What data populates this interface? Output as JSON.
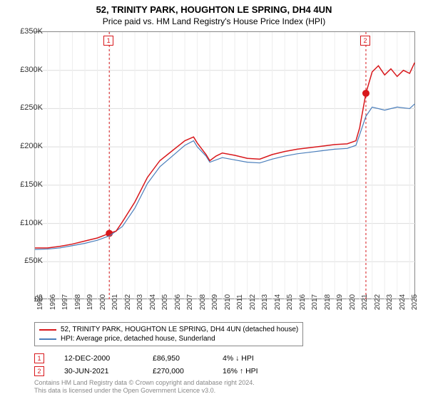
{
  "title": "52, TRINITY PARK, HOUGHTON LE SPRING, DH4 4UN",
  "subtitle": "Price paid vs. HM Land Registry's House Price Index (HPI)",
  "chart": {
    "type": "line",
    "x_axis": {
      "min": 1995,
      "max": 2025.5,
      "ticks": [
        1995,
        1996,
        1997,
        1998,
        1999,
        2000,
        2001,
        2002,
        2003,
        2004,
        2005,
        2006,
        2007,
        2008,
        2009,
        2010,
        2011,
        2012,
        2013,
        2014,
        2015,
        2016,
        2017,
        2018,
        2019,
        2020,
        2021,
        2022,
        2023,
        2024,
        2025
      ]
    },
    "y_axis": {
      "min": 0,
      "max": 350000,
      "tick_step": 50000,
      "tick_labels": [
        "£0",
        "£50K",
        "£100K",
        "£150K",
        "£200K",
        "£250K",
        "£300K",
        "£350K"
      ]
    },
    "background_color": "#ffffff",
    "grid_color_h": "#dddddd",
    "grid_color_v": "#eeeeee",
    "border_color": "#888888",
    "series": [
      {
        "id": "price_paid",
        "label": "52, TRINITY PARK, HOUGHTON LE SPRING, DH4 4UN (detached house)",
        "color": "#d8181c",
        "line_width": 1.5,
        "data": [
          [
            1995,
            68000
          ],
          [
            1996,
            68000
          ],
          [
            1997,
            70000
          ],
          [
            1998,
            73000
          ],
          [
            1999,
            77000
          ],
          [
            2000,
            81000
          ],
          [
            2000.95,
            86950
          ],
          [
            2001.5,
            90000
          ],
          [
            2002,
            102000
          ],
          [
            2003,
            128000
          ],
          [
            2004,
            160000
          ],
          [
            2005,
            182000
          ],
          [
            2006,
            195000
          ],
          [
            2007,
            208000
          ],
          [
            2007.7,
            213000
          ],
          [
            2008,
            205000
          ],
          [
            2008.7,
            190000
          ],
          [
            2009,
            182000
          ],
          [
            2009.5,
            188000
          ],
          [
            2010,
            192000
          ],
          [
            2011,
            189000
          ],
          [
            2012,
            185000
          ],
          [
            2013,
            184000
          ],
          [
            2014,
            190000
          ],
          [
            2015,
            194000
          ],
          [
            2016,
            197000
          ],
          [
            2017,
            199000
          ],
          [
            2018,
            201000
          ],
          [
            2019,
            203000
          ],
          [
            2020,
            204000
          ],
          [
            2020.7,
            208000
          ],
          [
            2021,
            225000
          ],
          [
            2021.5,
            270000
          ],
          [
            2022,
            298000
          ],
          [
            2022.5,
            306000
          ],
          [
            2023,
            294000
          ],
          [
            2023.5,
            302000
          ],
          [
            2024,
            292000
          ],
          [
            2024.5,
            300000
          ],
          [
            2025,
            296000
          ],
          [
            2025.4,
            310000
          ]
        ]
      },
      {
        "id": "hpi",
        "label": "HPI: Average price, detached house, Sunderland",
        "color": "#4a7ebb",
        "line_width": 1.2,
        "data": [
          [
            1995,
            66000
          ],
          [
            1996,
            66500
          ],
          [
            1997,
            68000
          ],
          [
            1998,
            71000
          ],
          [
            1999,
            74000
          ],
          [
            2000,
            78000
          ],
          [
            2001,
            84000
          ],
          [
            2002,
            96000
          ],
          [
            2003,
            120000
          ],
          [
            2004,
            152000
          ],
          [
            2005,
            174000
          ],
          [
            2006,
            188000
          ],
          [
            2007,
            202000
          ],
          [
            2007.7,
            208000
          ],
          [
            2008,
            200000
          ],
          [
            2008.7,
            188000
          ],
          [
            2009,
            180000
          ],
          [
            2010,
            186000
          ],
          [
            2011,
            183000
          ],
          [
            2012,
            180000
          ],
          [
            2013,
            179000
          ],
          [
            2014,
            184000
          ],
          [
            2015,
            188000
          ],
          [
            2016,
            191000
          ],
          [
            2017,
            193000
          ],
          [
            2018,
            195000
          ],
          [
            2019,
            197000
          ],
          [
            2020,
            198000
          ],
          [
            2020.7,
            202000
          ],
          [
            2021,
            216000
          ],
          [
            2021.5,
            240000
          ],
          [
            2022,
            252000
          ],
          [
            2023,
            248000
          ],
          [
            2024,
            252000
          ],
          [
            2025,
            250000
          ],
          [
            2025.4,
            256000
          ]
        ]
      }
    ],
    "markers": [
      {
        "id": 1,
        "label": "1",
        "x": 2000.95,
        "y": 86950,
        "color": "#d8181c"
      },
      {
        "id": 2,
        "label": "2",
        "x": 2021.5,
        "y": 270000,
        "color": "#d8181c"
      }
    ]
  },
  "sales": [
    {
      "badge": "1",
      "date": "12-DEC-2000",
      "price": "£86,950",
      "delta": "4% ↓ HPI",
      "color": "#d8181c"
    },
    {
      "badge": "2",
      "date": "30-JUN-2021",
      "price": "£270,000",
      "delta": "16% ↑ HPI",
      "color": "#d8181c"
    }
  ],
  "footer": {
    "line1": "Contains HM Land Registry data © Crown copyright and database right 2024.",
    "line2": "This data is licensed under the Open Government Licence v3.0."
  }
}
